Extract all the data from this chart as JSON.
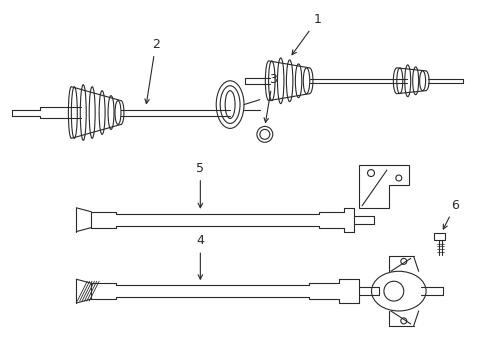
{
  "bg_color": "#ffffff",
  "lc": "#2a2a2a",
  "lw": 0.8,
  "fig_width": 4.89,
  "fig_height": 3.6,
  "dpi": 100
}
